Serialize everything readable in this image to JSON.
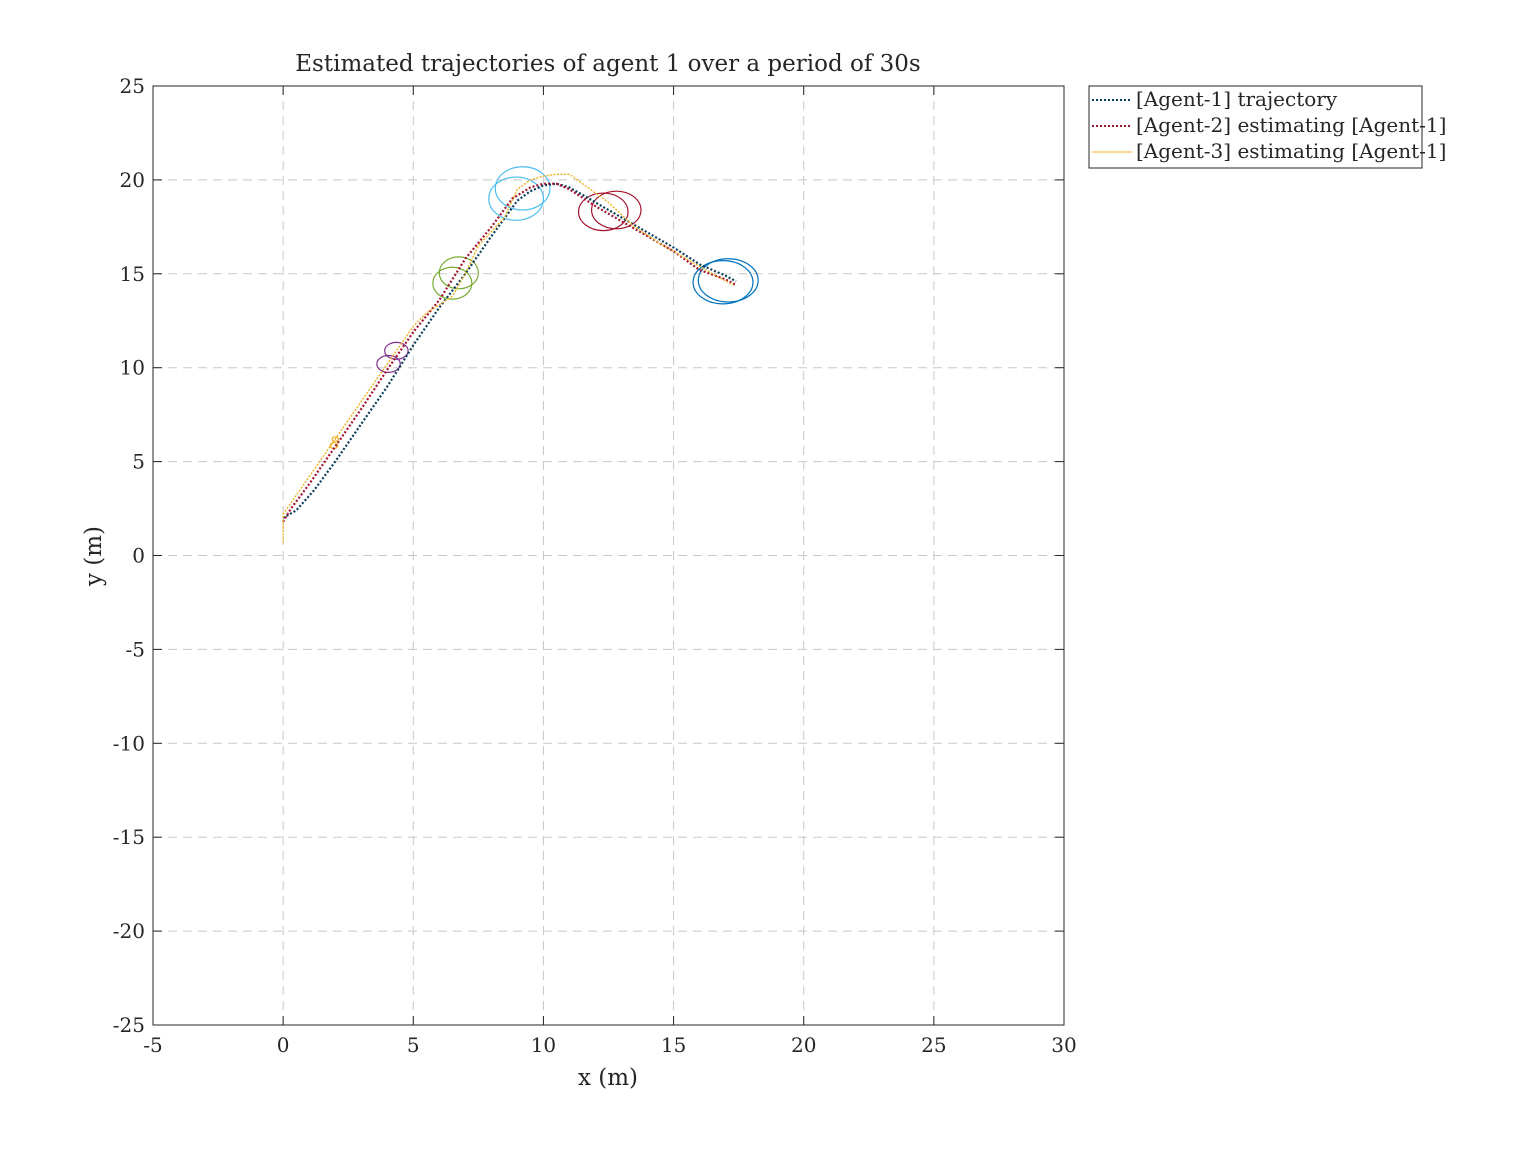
{
  "chart_data": {
    "type": "line",
    "title": "Estimated trajectories of agent 1 over a period of 30s",
    "xlabel": "x (m)",
    "ylabel": "y (m)",
    "xlim": [
      -5,
      30
    ],
    "ylim": [
      -25,
      25
    ],
    "x_ticks": [
      -5,
      0,
      5,
      10,
      15,
      20,
      25,
      30
    ],
    "y_ticks": [
      -25,
      -20,
      -15,
      -10,
      -5,
      0,
      5,
      10,
      15,
      20,
      25
    ],
    "x_tick_labels": [
      "-5",
      "0",
      "5",
      "10",
      "15",
      "20",
      "25",
      "30"
    ],
    "y_tick_labels": [
      "-25",
      "-20",
      "-15",
      "-10",
      "-5",
      "0",
      "5",
      "10",
      "15",
      "20",
      "25"
    ],
    "grid": true,
    "legend_position": "outside-top-right",
    "series": [
      {
        "name": "[Agent-1] trajectory",
        "color": "#0b3d5c",
        "style": "dotted",
        "x": [
          0,
          0.5,
          1.2,
          2.0,
          3.0,
          4.0,
          5.0,
          6.0,
          7.0,
          8.0,
          9.0,
          9.5,
          10.0,
          10.5,
          11.0,
          12.0,
          13.0,
          14.0,
          15.0,
          16.0,
          17.0,
          17.4
        ],
        "y": [
          2.0,
          2.4,
          3.5,
          5.0,
          7.0,
          9.0,
          11.2,
          13.2,
          15.0,
          17.0,
          18.9,
          19.4,
          19.7,
          19.8,
          19.6,
          18.8,
          18.0,
          17.2,
          16.4,
          15.5,
          14.9,
          14.6
        ]
      },
      {
        "name": "[Agent-2] estimating [Agent-1]",
        "color": "#a2142f",
        "style": "dotted",
        "x": [
          0,
          0.3,
          1.0,
          2.0,
          3.0,
          4.0,
          5.0,
          6.0,
          7.0,
          8.0,
          8.8,
          9.5,
          10.0,
          10.5,
          11.0,
          12.0,
          12.5,
          13.0,
          14.0,
          15.0,
          16.0,
          17.0,
          17.4
        ],
        "y": [
          1.8,
          2.5,
          3.8,
          5.8,
          7.8,
          9.9,
          11.9,
          13.6,
          15.8,
          17.5,
          19.0,
          19.6,
          19.8,
          19.8,
          19.5,
          18.6,
          18.2,
          17.8,
          17.0,
          16.2,
          15.2,
          14.7,
          14.4
        ]
      },
      {
        "name": "[Agent-3] estimating [Agent-1]",
        "color": "#edb120",
        "style": "solid",
        "x": [
          0,
          0,
          0.3,
          1.0,
          2.0,
          3.0,
          4.0,
          5.0,
          5.5,
          6.5,
          7.0,
          7.5,
          8.5,
          9.0,
          9.5,
          10.0,
          10.5,
          11.0,
          11.5,
          12.5,
          13.5,
          14.5,
          15.5,
          16.5,
          17.3
        ],
        "y": [
          0.7,
          2.2,
          2.8,
          4.2,
          6.2,
          8.2,
          10.2,
          12.2,
          12.9,
          13.8,
          15.0,
          16.5,
          18.0,
          19.5,
          20.0,
          20.2,
          20.3,
          20.3,
          19.8,
          18.8,
          17.5,
          16.6,
          15.8,
          15.0,
          14.4
        ]
      }
    ],
    "uncertainty_ellipses": [
      {
        "color": "#edb120",
        "cx": 1.95,
        "cy": 5.85,
        "rx": 0.15,
        "ry": 0.15
      },
      {
        "color": "#edb120",
        "cx": 2.0,
        "cy": 6.2,
        "rx": 0.12,
        "ry": 0.12
      },
      {
        "color": "#7e2f8e",
        "cx": 4.05,
        "cy": 10.2,
        "rx": 0.45,
        "ry": 0.45
      },
      {
        "color": "#7e2f8e",
        "cx": 4.35,
        "cy": 10.9,
        "rx": 0.45,
        "ry": 0.45
      },
      {
        "color": "#77ac30",
        "cx": 6.5,
        "cy": 14.5,
        "rx": 0.75,
        "ry": 0.85
      },
      {
        "color": "#77ac30",
        "cx": 6.75,
        "cy": 15.05,
        "rx": 0.75,
        "ry": 0.85
      },
      {
        "color": "#4dbeee",
        "cx": 8.95,
        "cy": 19.0,
        "rx": 1.05,
        "ry": 1.15
      },
      {
        "color": "#4dbeee",
        "cx": 9.2,
        "cy": 19.55,
        "rx": 1.05,
        "ry": 1.15
      },
      {
        "color": "#a2142f",
        "cx": 12.3,
        "cy": 18.3,
        "rx": 0.95,
        "ry": 1.0
      },
      {
        "color": "#a2142f",
        "cx": 12.8,
        "cy": 18.4,
        "rx": 0.95,
        "ry": 1.0
      },
      {
        "color": "#0072bd",
        "cx": 16.9,
        "cy": 14.55,
        "rx": 1.15,
        "ry": 1.15
      },
      {
        "color": "#0072bd",
        "cx": 17.1,
        "cy": 14.65,
        "rx": 1.15,
        "ry": 1.15
      }
    ]
  }
}
